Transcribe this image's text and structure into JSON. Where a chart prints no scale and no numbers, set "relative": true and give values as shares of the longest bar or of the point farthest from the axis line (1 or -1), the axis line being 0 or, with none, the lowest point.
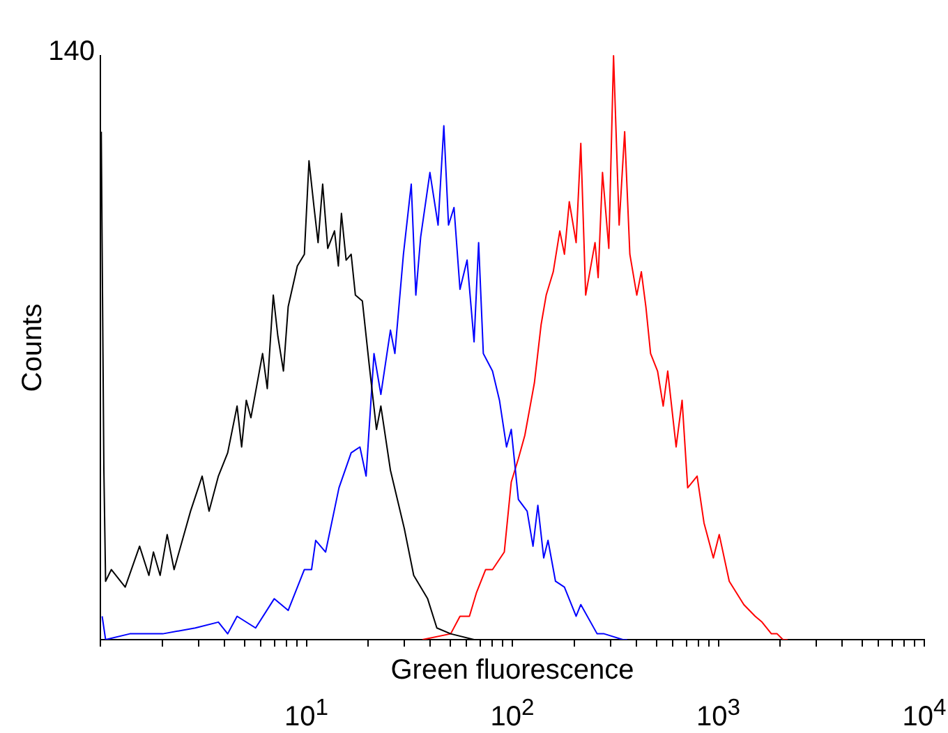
{
  "chart_data": {
    "type": "line",
    "xlabel": "Green fluorescence",
    "ylabel": "Counts",
    "log": "x",
    "relative": true,
    "annotations": [
      "140"
    ],
    "xlim": [
      1,
      10000
    ],
    "xticks": [
      {
        "value": 1,
        "label": null
      },
      {
        "value": 2,
        "label": null
      },
      {
        "value": 3,
        "label": null
      },
      {
        "value": 4,
        "label": null
      },
      {
        "value": 5,
        "label": null
      },
      {
        "value": 6,
        "label": null
      },
      {
        "value": 7,
        "label": null
      },
      {
        "value": 8,
        "label": null
      },
      {
        "value": 9,
        "label": null
      },
      {
        "value": 10,
        "label": "10$^{1}$"
      },
      {
        "value": 20,
        "label": null
      },
      {
        "value": 30,
        "label": null
      },
      {
        "value": 40,
        "label": null
      },
      {
        "value": 50,
        "label": null
      },
      {
        "value": 60,
        "label": null
      },
      {
        "value": 70,
        "label": null
      },
      {
        "value": 80,
        "label": null
      },
      {
        "value": 90,
        "label": null
      },
      {
        "value": 100,
        "label": "10$^{2}$"
      },
      {
        "value": 200,
        "label": null
      },
      {
        "value": 300,
        "label": null
      },
      {
        "value": 400,
        "label": null
      },
      {
        "value": 500,
        "label": null
      },
      {
        "value": 600,
        "label": null
      },
      {
        "value": 700,
        "label": null
      },
      {
        "value": 800,
        "label": null
      },
      {
        "value": 900,
        "label": null
      },
      {
        "value": 1000,
        "label": "10$^{3}$"
      },
      {
        "value": 2000,
        "label": null
      },
      {
        "value": 3000,
        "label": null
      },
      {
        "value": 4000,
        "label": null
      },
      {
        "value": 5000,
        "label": null
      },
      {
        "value": 6000,
        "label": null
      },
      {
        "value": 7000,
        "label": null
      },
      {
        "value": 8000,
        "label": null
      },
      {
        "value": 9000,
        "label": null
      },
      {
        "value": 10000,
        "label": "10$^{4}$"
      }
    ],
    "series": [
      {
        "color": "#000000",
        "x": [
          1.01,
          1.02,
          1.04,
          1.06,
          1.13,
          1.32,
          1.55,
          1.72,
          1.81,
          1.95,
          2.11,
          2.28,
          2.74,
          3.12,
          3.37,
          3.74,
          4.15,
          4.61,
          4.85,
          5.11,
          5.38,
          6.13,
          6.46,
          6.91,
          7.27,
          7.74,
          8.16,
          9.04,
          9.78,
          10.3,
          10.9,
          11.4,
          12.0,
          12.7,
          13.7,
          14.3,
          14.8,
          15.6,
          16.5,
          17.3,
          18.7,
          20.2,
          21.9,
          23.0,
          25.6,
          29.9,
          33.2,
          38.8,
          43.0,
          50.2,
          65.2
        ],
        "values": [
          0.87,
          0.67,
          0.29,
          0.1,
          0.12,
          0.09,
          0.16,
          0.11,
          0.15,
          0.11,
          0.18,
          0.12,
          0.22,
          0.28,
          0.22,
          0.28,
          0.32,
          0.4,
          0.33,
          0.41,
          0.38,
          0.49,
          0.43,
          0.59,
          0.52,
          0.46,
          0.57,
          0.64,
          0.66,
          0.82,
          0.74,
          0.68,
          0.78,
          0.67,
          0.7,
          0.64,
          0.73,
          0.65,
          0.66,
          0.59,
          0.58,
          0.47,
          0.36,
          0.4,
          0.29,
          0.19,
          0.11,
          0.07,
          0.02,
          0.01,
          0
        ]
      },
      {
        "color": "#0000ff",
        "x": [
          1.02,
          1.06,
          1.39,
          2.01,
          2.89,
          3.74,
          4.15,
          4.61,
          5.67,
          6.98,
          8.16,
          9.78,
          10.6,
          11.1,
          12.4,
          14.4,
          16.5,
          18.2,
          19.5,
          21.3,
          23.0,
          25.6,
          26.9,
          29.6,
          32.3,
          34.0,
          35.9,
          39.8,
          43.6,
          46.5,
          49.0,
          52.1,
          55.7,
          60.3,
          65.2,
          68.6,
          72.3,
          80.1,
          86.6,
          93.7,
          98.8,
          107,
          118,
          126,
          133,
          142,
          149,
          162,
          179,
          204,
          215,
          258,
          279,
          344,
          361
        ],
        "values": [
          0.04,
          0,
          0.01,
          0.01,
          0.02,
          0.03,
          0.01,
          0.04,
          0.02,
          0.07,
          0.05,
          0.12,
          0.12,
          0.17,
          0.15,
          0.26,
          0.32,
          0.33,
          0.28,
          0.49,
          0.42,
          0.53,
          0.49,
          0.66,
          0.78,
          0.59,
          0.69,
          0.8,
          0.71,
          0.88,
          0.71,
          0.74,
          0.6,
          0.65,
          0.51,
          0.68,
          0.49,
          0.46,
          0.41,
          0.33,
          0.36,
          0.24,
          0.22,
          0.16,
          0.23,
          0.14,
          0.17,
          0.1,
          0.09,
          0.04,
          0.06,
          0.01,
          0.01,
          0,
          0
        ]
      },
      {
        "color": "#ff0000",
        "x": [
          36.6,
          50.2,
          55.7,
          61.9,
          66.9,
          74.2,
          80.1,
          91.4,
          98.8,
          107,
          115,
          128,
          138,
          146,
          158,
          170,
          179,
          189,
          204,
          215,
          227,
          252,
          261,
          274,
          294,
          310,
          330,
          351,
          372,
          402,
          423,
          445,
          469,
          507,
          540,
          568,
          624,
          667,
          710,
          789,
          852,
          946,
          1010,
          1130,
          1330,
          1510,
          1630,
          1810,
          1930,
          2060,
          2170
        ],
        "values": [
          0,
          0.01,
          0.04,
          0.04,
          0.08,
          0.12,
          0.12,
          0.15,
          0.27,
          0.31,
          0.35,
          0.44,
          0.54,
          0.59,
          0.63,
          0.7,
          0.66,
          0.75,
          0.68,
          0.85,
          0.59,
          0.68,
          0.62,
          0.8,
          0.67,
          1,
          0.71,
          0.87,
          0.66,
          0.59,
          0.63,
          0.57,
          0.49,
          0.46,
          0.4,
          0.46,
          0.33,
          0.41,
          0.26,
          0.28,
          0.2,
          0.14,
          0.18,
          0.1,
          0.06,
          0.04,
          0.03,
          0.01,
          0.01,
          0,
          0
        ]
      }
    ]
  }
}
